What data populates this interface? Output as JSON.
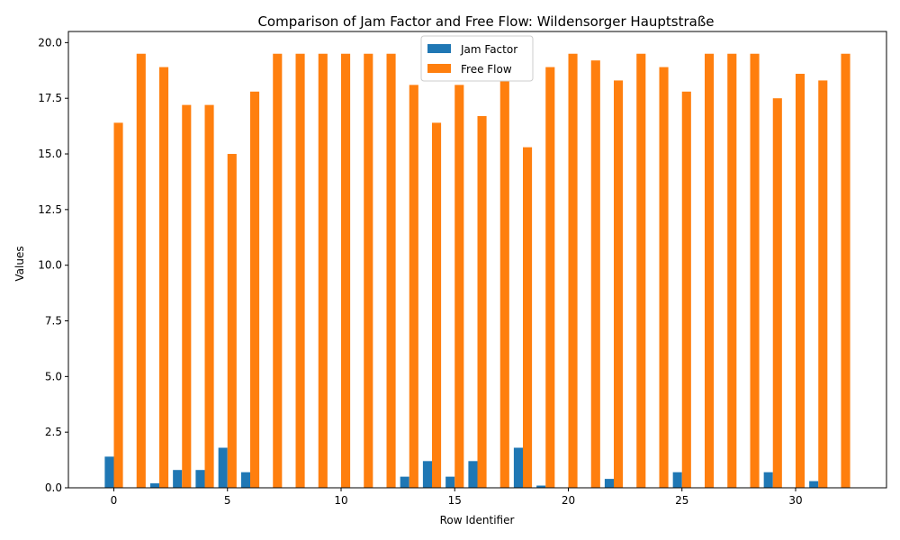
{
  "chart_data": {
    "type": "bar",
    "title": "Comparison of Jam Factor and Free Flow: Wildensorger Hauptstraße",
    "xlabel": "Row Identifier",
    "ylabel": "Values",
    "xlim": [
      -2,
      34
    ],
    "ylim": [
      0,
      20.5
    ],
    "xticks": [
      0,
      5,
      10,
      15,
      20,
      25,
      30
    ],
    "yticks": [
      0.0,
      2.5,
      5.0,
      7.5,
      10.0,
      12.5,
      15.0,
      17.5,
      20.0
    ],
    "x": [
      0,
      1,
      2,
      3,
      4,
      5,
      6,
      7,
      8,
      9,
      10,
      11,
      12,
      13,
      14,
      15,
      16,
      17,
      18,
      19,
      20,
      21,
      22,
      23,
      24,
      25,
      26,
      27,
      28,
      29,
      30,
      31,
      32
    ],
    "series": [
      {
        "name": "Jam Factor",
        "color": "#1f77b4",
        "values": [
          1.4,
          0,
          0.2,
          0.8,
          0.8,
          1.8,
          0.7,
          0,
          0,
          0,
          0,
          0,
          0,
          0.5,
          1.2,
          0.5,
          1.2,
          0,
          1.8,
          0.1,
          0,
          0,
          0.4,
          0,
          0,
          0.7,
          0,
          0,
          0,
          0.7,
          0,
          0.3,
          0
        ]
      },
      {
        "name": "Free Flow",
        "color": "#ff7f0e",
        "values": [
          16.4,
          19.5,
          18.9,
          17.2,
          17.2,
          15.0,
          17.8,
          19.5,
          19.5,
          19.5,
          19.5,
          19.5,
          19.5,
          18.1,
          16.4,
          18.1,
          16.7,
          19.5,
          15.3,
          18.9,
          19.5,
          19.2,
          18.3,
          19.5,
          18.9,
          17.8,
          19.5,
          19.5,
          19.5,
          17.5,
          18.6,
          18.3,
          19.5
        ]
      }
    ],
    "legend": "upper-center",
    "grid": false
  }
}
